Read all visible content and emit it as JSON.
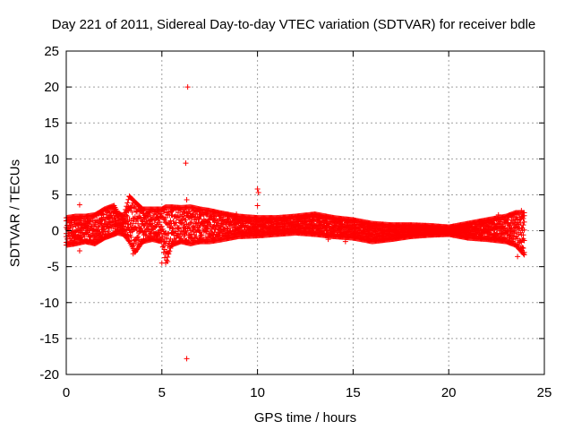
{
  "chart_data": {
    "type": "scatter",
    "title": "Day 221 of 2011, Sidereal Day-to-day VTEC variation (SDTVAR) for receiver bdle",
    "xlabel": "GPS time / hours",
    "ylabel": "SDTVAR / TECUs",
    "xlim": [
      0,
      25
    ],
    "ylim": [
      -20,
      25
    ],
    "xticks": [
      "0",
      "5",
      "10",
      "15",
      "20",
      "25"
    ],
    "yticks": [
      "25",
      "20",
      "15",
      "10",
      "5",
      "0",
      "-5",
      "-10",
      "-15",
      "-20"
    ],
    "grid": true,
    "marker": "+",
    "color": "#ff0000",
    "series": [
      {
        "name": "SDTVAR",
        "band": {
          "x": [
            0.0,
            0.5,
            1.0,
            1.5,
            2.0,
            2.5,
            2.7,
            3.0,
            3.3,
            3.6,
            4.0,
            4.5,
            5.0,
            5.2,
            5.5,
            6.0,
            6.5,
            7.0,
            7.5,
            8.0,
            9.0,
            10.0,
            11.0,
            12.0,
            13.0,
            14.0,
            15.0,
            16.0,
            17.0,
            18.0,
            19.0,
            20.0,
            21.0,
            22.0,
            23.0,
            23.5,
            24.0
          ],
          "upper": [
            1.8,
            2.0,
            2.0,
            2.2,
            3.0,
            3.5,
            2.5,
            2.0,
            4.8,
            4.0,
            3.0,
            3.0,
            3.0,
            3.3,
            3.3,
            3.2,
            3.3,
            3.0,
            2.8,
            2.5,
            2.0,
            1.8,
            1.8,
            2.0,
            2.3,
            1.8,
            1.5,
            1.0,
            0.8,
            0.8,
            0.7,
            0.5,
            1.0,
            1.5,
            2.0,
            2.5,
            2.5
          ],
          "lower": [
            -2.0,
            -1.8,
            -1.5,
            -1.8,
            -1.0,
            -0.5,
            -0.3,
            -0.5,
            -1.5,
            -3.0,
            -1.5,
            -1.2,
            -1.5,
            -4.5,
            -2.0,
            -1.5,
            -1.8,
            -1.5,
            -1.5,
            -1.3,
            -0.8,
            -0.7,
            -0.5,
            -0.3,
            -0.5,
            -0.8,
            -1.0,
            -1.5,
            -1.2,
            -0.8,
            -0.6,
            -0.5,
            -1.0,
            -1.2,
            -1.5,
            -2.0,
            -3.5
          ]
        },
        "outliers": [
          {
            "x": 0.7,
            "y": 3.6
          },
          {
            "x": 0.7,
            "y": -2.8
          },
          {
            "x": 3.5,
            "y": -3.2
          },
          {
            "x": 5.0,
            "y": -4.5
          },
          {
            "x": 5.3,
            "y": -4.3
          },
          {
            "x": 6.35,
            "y": 20.0
          },
          {
            "x": 6.25,
            "y": 9.4
          },
          {
            "x": 6.3,
            "y": 4.3
          },
          {
            "x": 6.3,
            "y": -17.8
          },
          {
            "x": 8.9,
            "y": 2.3
          },
          {
            "x": 10.0,
            "y": 5.8
          },
          {
            "x": 10.05,
            "y": 5.3
          },
          {
            "x": 10.0,
            "y": 3.5
          },
          {
            "x": 13.7,
            "y": -1.2
          },
          {
            "x": 14.6,
            "y": -1.5
          },
          {
            "x": 22.6,
            "y": 2.2
          },
          {
            "x": 23.6,
            "y": -3.6
          },
          {
            "x": 23.8,
            "y": 2.8
          }
        ]
      }
    ]
  }
}
